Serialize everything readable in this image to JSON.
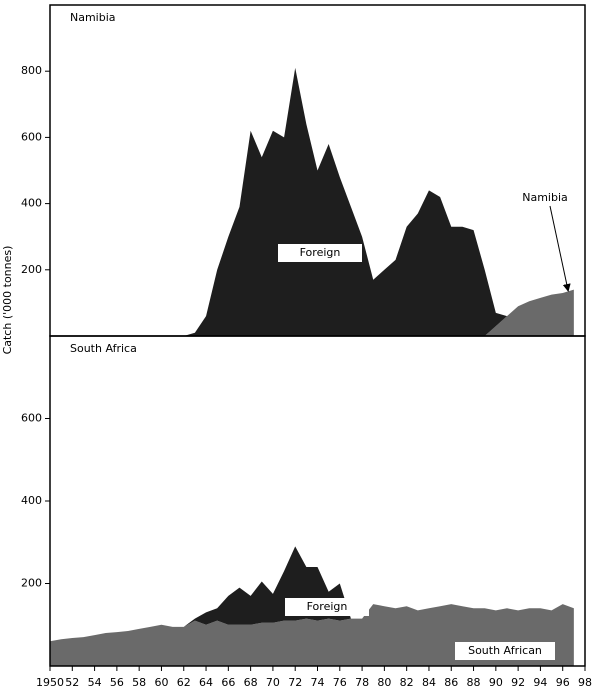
{
  "chart_data": [
    {
      "type": "area",
      "title": "Namibia",
      "ylabel": "Catch ('000 tonnes)",
      "x": [
        1950,
        1951,
        1952,
        1953,
        1954,
        1955,
        1956,
        1957,
        1958,
        1959,
        1960,
        1961,
        1962,
        1963,
        1964,
        1965,
        1966,
        1967,
        1968,
        1969,
        1970,
        1971,
        1972,
        1973,
        1974,
        1975,
        1976,
        1977,
        1978,
        1979,
        1980,
        1981,
        1982,
        1983,
        1984,
        1985,
        1986,
        1987,
        1988,
        1989,
        1990,
        1991,
        1992,
        1993,
        1994,
        1995,
        1996,
        1997
      ],
      "series": [
        {
          "name": "Namibia",
          "color": "#6a6a6a",
          "values": [
            0,
            0,
            0,
            0,
            0,
            0,
            0,
            0,
            0,
            0,
            0,
            0,
            0,
            0,
            0,
            0,
            0,
            0,
            0,
            0,
            0,
            0,
            0,
            0,
            0,
            0,
            0,
            0,
            0,
            0,
            0,
            0,
            0,
            0,
            0,
            0,
            0,
            0,
            0,
            0,
            30,
            60,
            90,
            105,
            115,
            125,
            130,
            140
          ]
        },
        {
          "name": "Foreign",
          "color": "#1e1e1e",
          "values": [
            0,
            0,
            0,
            0,
            0,
            0,
            0,
            0,
            0,
            0,
            0,
            0,
            0,
            10,
            60,
            200,
            300,
            390,
            620,
            540,
            620,
            600,
            810,
            640,
            500,
            580,
            480,
            390,
            300,
            170,
            200,
            230,
            330,
            370,
            440,
            420,
            330,
            330,
            320,
            200,
            40,
            0,
            0,
            0,
            0,
            0,
            0,
            0
          ]
        }
      ],
      "xlim": [
        1950,
        1998
      ],
      "ylim": [
        0,
        1000
      ],
      "yticks": [
        200,
        400,
        600,
        800
      ]
    },
    {
      "type": "area",
      "title": "South Africa",
      "x": [
        1950,
        1951,
        1952,
        1953,
        1954,
        1955,
        1956,
        1957,
        1958,
        1959,
        1960,
        1961,
        1962,
        1963,
        1964,
        1965,
        1966,
        1967,
        1968,
        1969,
        1970,
        1971,
        1972,
        1973,
        1974,
        1975,
        1976,
        1977,
        1978,
        1979,
        1980,
        1981,
        1982,
        1983,
        1984,
        1985,
        1986,
        1987,
        1988,
        1989,
        1990,
        1991,
        1992,
        1993,
        1994,
        1995,
        1996,
        1997
      ],
      "series": [
        {
          "name": "South African",
          "color": "#6a6a6a",
          "values": [
            60,
            65,
            68,
            70,
            75,
            80,
            82,
            85,
            90,
            95,
            100,
            95,
            95,
            110,
            100,
            110,
            100,
            100,
            100,
            105,
            105,
            110,
            110,
            115,
            110,
            115,
            110,
            115,
            115,
            150,
            145,
            140,
            145,
            135,
            140,
            145,
            150,
            145,
            140,
            140,
            135,
            140,
            135,
            140,
            140,
            135,
            150,
            140
          ]
        },
        {
          "name": "Foreign",
          "color": "#1e1e1e",
          "values": [
            0,
            0,
            0,
            0,
            0,
            0,
            0,
            0,
            0,
            0,
            0,
            0,
            0,
            5,
            30,
            30,
            70,
            90,
            70,
            100,
            70,
            120,
            180,
            125,
            130,
            65,
            90,
            0,
            0,
            0,
            0,
            0,
            0,
            0,
            0,
            0,
            0,
            0,
            0,
            0,
            0,
            0,
            0,
            0,
            0,
            0,
            0,
            0
          ]
        }
      ],
      "xlim": [
        1950,
        1998
      ],
      "ylim": [
        0,
        800
      ],
      "yticks": [
        200,
        400,
        600
      ],
      "xticks": [
        1950,
        {
          "value": 1952,
          "label": "52"
        },
        {
          "value": 1954,
          "label": "54"
        },
        {
          "value": 1956,
          "label": "56"
        },
        {
          "value": 1958,
          "label": "58"
        },
        {
          "value": 1960,
          "label": "60"
        },
        {
          "value": 1962,
          "label": "62"
        },
        {
          "value": 1964,
          "label": "64"
        },
        {
          "value": 1966,
          "label": "66"
        },
        {
          "value": 1968,
          "label": "68"
        },
        {
          "value": 1970,
          "label": "70"
        },
        {
          "value": 1972,
          "label": "72"
        },
        {
          "value": 1974,
          "label": "74"
        },
        {
          "value": 1976,
          "label": "76"
        },
        {
          "value": 1978,
          "label": "78"
        },
        {
          "value": 1980,
          "label": "80"
        },
        {
          "value": 1982,
          "label": "82"
        },
        {
          "value": 1984,
          "label": "84"
        },
        {
          "value": 1986,
          "label": "86"
        },
        {
          "value": 1988,
          "label": "88"
        },
        {
          "value": 1990,
          "label": "90"
        },
        {
          "value": 1992,
          "label": "92"
        },
        {
          "value": 1994,
          "label": "94"
        },
        {
          "value": 1996,
          "label": "96"
        },
        {
          "value": 1998,
          "label": "98"
        }
      ]
    }
  ]
}
